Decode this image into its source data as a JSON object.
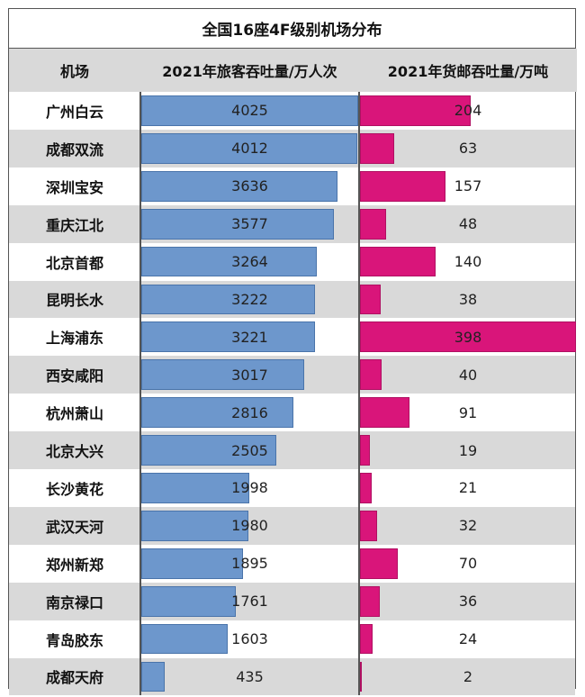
{
  "chart_data": {
    "type": "table",
    "title": "全国16座4F级别机场分布",
    "columns": [
      "机场",
      "2021年旅客吞吐量/万人次",
      "2021年货邮吞吐量/万吨"
    ],
    "categories": [
      "广州白云",
      "成都双流",
      "深圳宝安",
      "重庆江北",
      "北京首都",
      "昆明长水",
      "上海浦东",
      "西安咸阳",
      "杭州萧山",
      "北京大兴",
      "长沙黄花",
      "武汉天河",
      "郑州新郑",
      "南京禄口",
      "青岛胶东",
      "成都天府"
    ],
    "series": [
      {
        "name": "2021年旅客吞吐量/万人次",
        "values": [
          4025,
          4012,
          3636,
          3577,
          3264,
          3222,
          3221,
          3017,
          2816,
          2505,
          1998,
          1980,
          1895,
          1761,
          1603,
          435
        ]
      },
      {
        "name": "2021年货邮吞吐量/万吨",
        "values": [
          204,
          63,
          157,
          48,
          140,
          38,
          398,
          40,
          91,
          19,
          21,
          32,
          70,
          36,
          24,
          2
        ]
      }
    ],
    "colors": {
      "pax": "#6d97cc",
      "cargo": "#d9157a",
      "stripe": "#d9d9d9"
    }
  }
}
